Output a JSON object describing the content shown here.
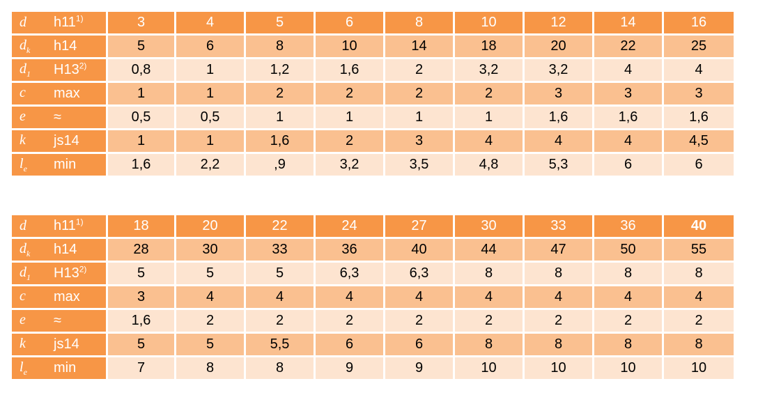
{
  "tables": [
    {
      "header": {
        "symbol": "d",
        "tol_text": "h11",
        "tol_sup": "1)",
        "values": [
          "3",
          "4",
          "5",
          "6",
          "8",
          "10",
          "12",
          "14",
          "16"
        ]
      },
      "rows": [
        {
          "symbol": "d",
          "symbol_sub": "k",
          "tol": "h14",
          "tol_sup": "",
          "values": [
            "5",
            "6",
            "8",
            "10",
            "14",
            "18",
            "20",
            "22",
            "25"
          ]
        },
        {
          "symbol": "d",
          "symbol_sub": "1",
          "tol": "H13",
          "tol_sup": "2)",
          "values": [
            "0,8",
            "1",
            "1,2",
            "1,6",
            "2",
            "3,2",
            "3,2",
            "4",
            "4"
          ]
        },
        {
          "symbol": "c",
          "symbol_sub": "",
          "tol": "max",
          "tol_sup": "",
          "values": [
            "1",
            "1",
            "2",
            "2",
            "2",
            "2",
            "3",
            "3",
            "3"
          ]
        },
        {
          "symbol": "e",
          "symbol_sub": "",
          "tol": "≈",
          "tol_sup": "",
          "values": [
            "0,5",
            "0,5",
            "1",
            "1",
            "1",
            "1",
            "1,6",
            "1,6",
            "1,6"
          ]
        },
        {
          "symbol": "k",
          "symbol_sub": "",
          "tol": "js14",
          "tol_sup": "",
          "values": [
            "1",
            "1",
            "1,6",
            "2",
            "3",
            "4",
            "4",
            "4",
            "4,5"
          ]
        },
        {
          "symbol": "l",
          "symbol_sub": "e",
          "tol": "min",
          "tol_sup": "",
          "values": [
            "1,6",
            "2,2",
            ",9",
            "3,2",
            "3,5",
            "4,8",
            "5,3",
            "6",
            "6"
          ]
        }
      ]
    },
    {
      "header": {
        "symbol": "d",
        "tol_text": "h11",
        "tol_sup": "1)",
        "values": [
          "18",
          "20",
          "22",
          "24",
          "27",
          "30",
          "33",
          "36",
          "40"
        ]
      },
      "rows": [
        {
          "symbol": "d",
          "symbol_sub": "k",
          "tol": "h14",
          "tol_sup": "",
          "values": [
            "28",
            "30",
            "33",
            "36",
            "40",
            "44",
            "47",
            "50",
            "55"
          ]
        },
        {
          "symbol": "d",
          "symbol_sub": "1",
          "tol": "H13",
          "tol_sup": "2)",
          "values": [
            "5",
            "5",
            "5",
            "6,3",
            "6,3",
            "8",
            "8",
            "8",
            "8"
          ]
        },
        {
          "symbol": "c",
          "symbol_sub": "",
          "tol": "max",
          "tol_sup": "",
          "values": [
            "3",
            "4",
            "4",
            "4",
            "4",
            "4",
            "4",
            "4",
            "4"
          ]
        },
        {
          "symbol": "e",
          "symbol_sub": "",
          "tol": "≈",
          "tol_sup": "",
          "values": [
            "1,6",
            "2",
            "2",
            "2",
            "2",
            "2",
            "2",
            "2",
            "2"
          ]
        },
        {
          "symbol": "k",
          "symbol_sub": "",
          "tol": "js14",
          "tol_sup": "",
          "values": [
            "5",
            "5",
            "5,5",
            "6",
            "6",
            "8",
            "8",
            "8",
            "8"
          ]
        },
        {
          "symbol": "l",
          "symbol_sub": "e",
          "tol": "min",
          "tol_sup": "",
          "values": [
            "7",
            "8",
            "8",
            "9",
            "9",
            "10",
            "10",
            "10",
            "10"
          ]
        }
      ]
    }
  ],
  "colors": {
    "header_bg": "#f79646",
    "row_dark": "#fac090",
    "row_light": "#fde4d0"
  }
}
